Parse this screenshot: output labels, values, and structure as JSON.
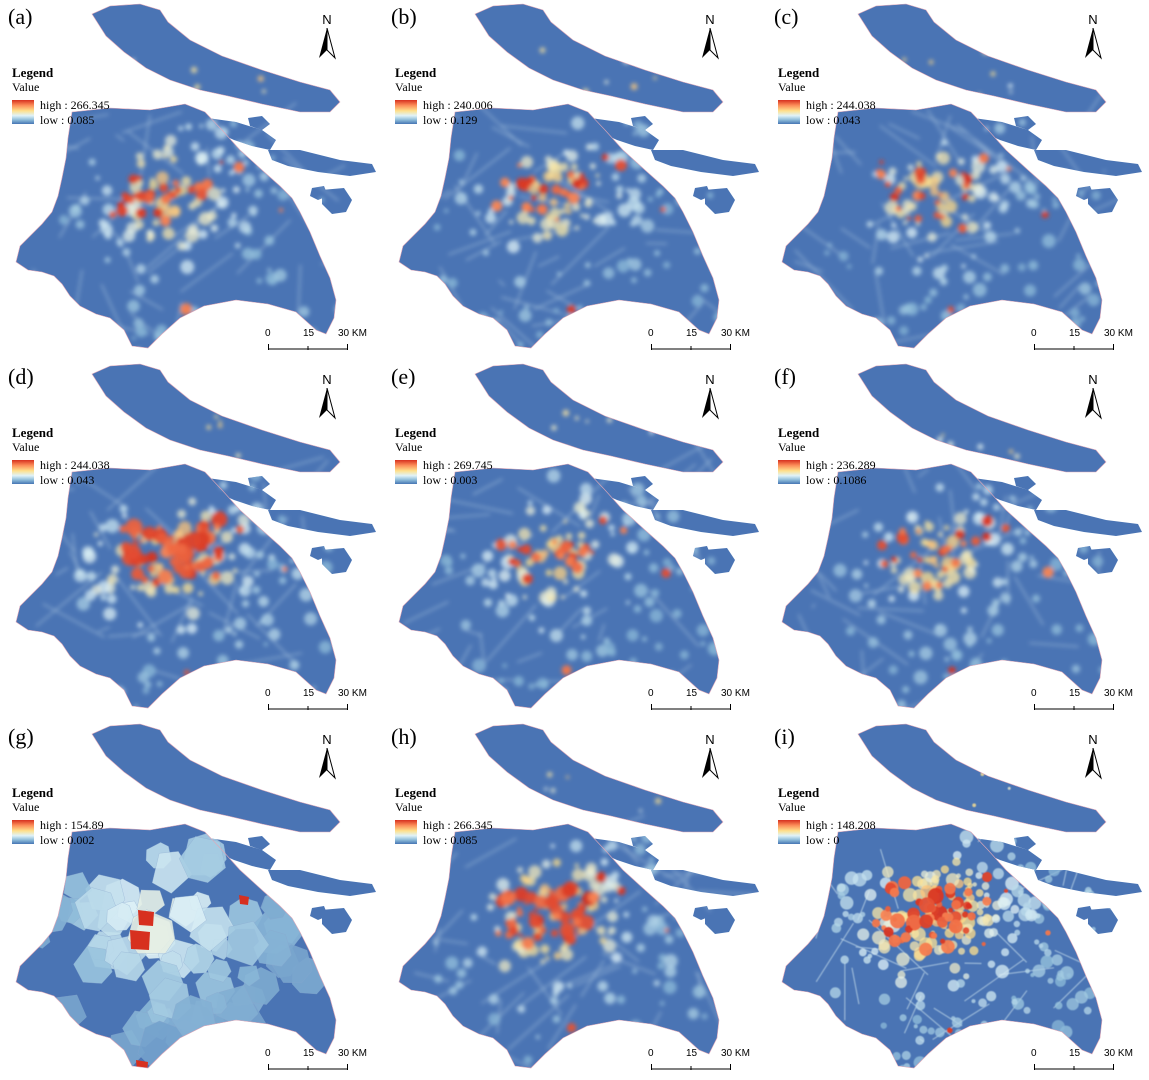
{
  "panels": [
    {
      "label": "(a)",
      "legend_title": "Legend",
      "legend_subtitle": "Value",
      "high": "high : 266.345",
      "low": "low : 0.085",
      "style": "smooth",
      "hot": 0.35
    },
    {
      "label": "(b)",
      "legend_title": "Legend",
      "legend_subtitle": "Value",
      "high": "high : 240.006",
      "low": "low : 0.129",
      "style": "smooth",
      "hot": 0.3
    },
    {
      "label": "(c)",
      "legend_title": "Legend",
      "legend_subtitle": "Value",
      "high": "high : 244.038",
      "low": "low : 0.043",
      "style": "smooth",
      "hot": 0.3
    },
    {
      "label": "(d)",
      "legend_title": "Legend",
      "legend_subtitle": "Value",
      "high": "high : 244.038",
      "low": "low : 0.043",
      "style": "intense",
      "hot": 0.9
    },
    {
      "label": "(e)",
      "legend_title": "Legend",
      "legend_subtitle": "Value",
      "high": "high : 269.745",
      "low": "low : 0.003",
      "style": "smooth",
      "hot": 0.25
    },
    {
      "label": "(f)",
      "legend_title": "Legend",
      "legend_subtitle": "Value",
      "high": "high : 236.289",
      "low": "low : 0.1086",
      "style": "smooth",
      "hot": 0.28
    },
    {
      "label": "(g)",
      "legend_title": "Legend",
      "legend_subtitle": "Value",
      "high": "high : 154.89",
      "low": "low : 0.002",
      "style": "voronoi",
      "hot": 0.15
    },
    {
      "label": "(h)",
      "legend_title": "Legend",
      "legend_subtitle": "Value",
      "high": "high : 266.345",
      "low": "low : 0.085",
      "style": "intense",
      "hot": 0.75
    },
    {
      "label": "(i)",
      "legend_title": "Legend",
      "legend_subtitle": "Value",
      "high": "high : 148.208",
      "low": "low : 0",
      "style": "noisy",
      "hot": 0.8
    }
  ],
  "north_label": "N",
  "scale": {
    "ticks": [
      "0",
      "15",
      "30 KM"
    ]
  },
  "colors": {
    "low": "#4a74b4",
    "mid": "#fee08b",
    "high": "#d7301f",
    "light": "#e0f3f8"
  }
}
